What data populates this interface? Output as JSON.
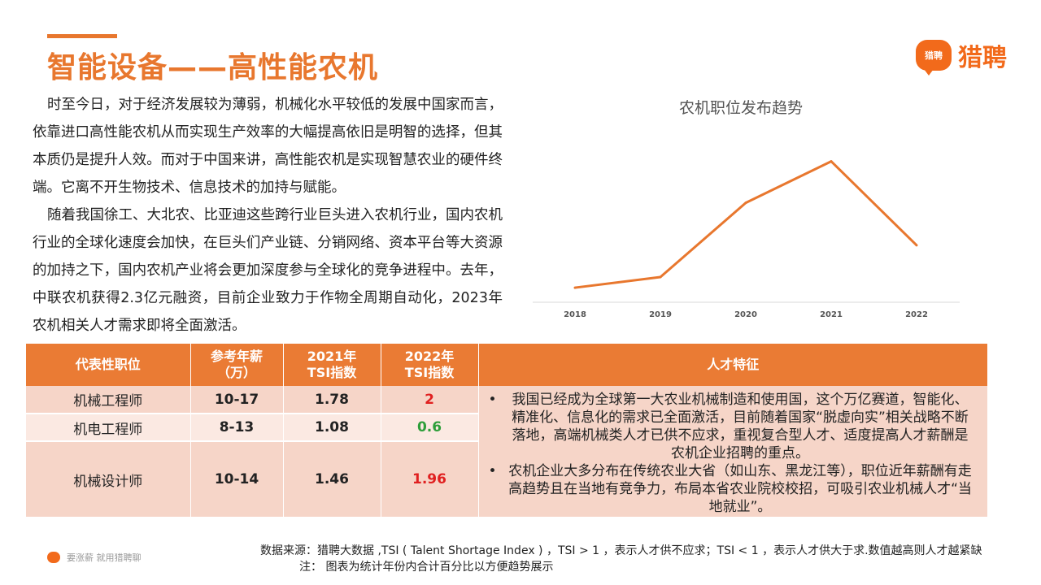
{
  "header": {
    "title": "智能设备——高性能农机"
  },
  "logo": {
    "badge_text": "猎聘",
    "text": "猎聘"
  },
  "body": {
    "paragraph1": "时至今日，对于经济发展较为薄弱，机械化水平较低的发展中国家而言，依靠进口高性能农机从而实现生产效率的大幅提高依旧是明智的选择，但其本质仍是提升人效。而对于中国来讲，高性能农机是实现智慧农业的硬件终端。它离不开生物技术、信息技术的加持与赋能。",
    "paragraph2": "随着我国徐工、大北农、比亚迪这些跨行业巨头进入农机行业，国内农机行业的全球化速度会加快，在巨头们产业链、分销网络、资本平台等大资源的加持之下，国内农机产业将会更加深度参与全球化的竞争进程中。去年，中联农机获得2.3亿元融资，目前企业致力于作物全周期自动化，2023年农机相关人才需求即将全面激活。"
  },
  "chart_data": {
    "type": "line",
    "title": "农机职位发布趋势",
    "categories": [
      "2018",
      "2019",
      "2020",
      "2021",
      "2022"
    ],
    "values": [
      0.5,
      1.6,
      9.3,
      13.6,
      4.9
    ],
    "ylim": [
      0,
      15
    ],
    "grid": false,
    "color": "#e8772e"
  },
  "table": {
    "headers": [
      "代表性职位",
      "参考年薪\n（万）",
      "2021年\nTSI指数",
      "2022年\nTSI指数",
      "人才特征"
    ],
    "rows": [
      {
        "position": "机械工程师",
        "salary": "10-17",
        "tsi2021": "1.78",
        "tsi2022": "2"
      },
      {
        "position": "机电工程师",
        "salary": "8-13",
        "tsi2021": "1.08",
        "tsi2022": "0.6"
      },
      {
        "position": "机械设计师",
        "salary": "10-14",
        "tsi2021": "1.46",
        "tsi2022": "1.96"
      }
    ],
    "traits": [
      "我国已经成为全球第一大农业机械制造和使用国，这个万亿赛道，智能化、精准化、信息化的需求已全面激活，目前随着国家“脱虚向实”相关战略不断落地，高端机械类人才已供不应求，重视复合型人才、适度提高人才薪酬是农机企业招聘的重点。",
      "农机企业大多分布在传统农业大省（如山东、黑龙江等），职位近年薪酬有走高趋势且在当地有竞争力，布局本省农业院校校招，可吸引农业机械人才“当地就业”。"
    ]
  },
  "footer": {
    "slogan": "要涨薪 就用猎聘聊",
    "source": "数据来源：猎聘大数据 ,TSI ( Talent Shortage Index ) ，TSI > 1 ，表示人才供不应求；TSI < 1 ，表示人才供大于求.数值越高则人才越紧缺",
    "note": "注： 图表为统计年份内合计百分比以方便趋势展示"
  },
  "colors": {
    "accent": "#e8772e",
    "header_bg": "#ea7b34",
    "row_bg": "#f6d5c8",
    "row_bg_alt": "#fbe9e2",
    "red": "#e02020",
    "green": "#2e9e3a"
  }
}
